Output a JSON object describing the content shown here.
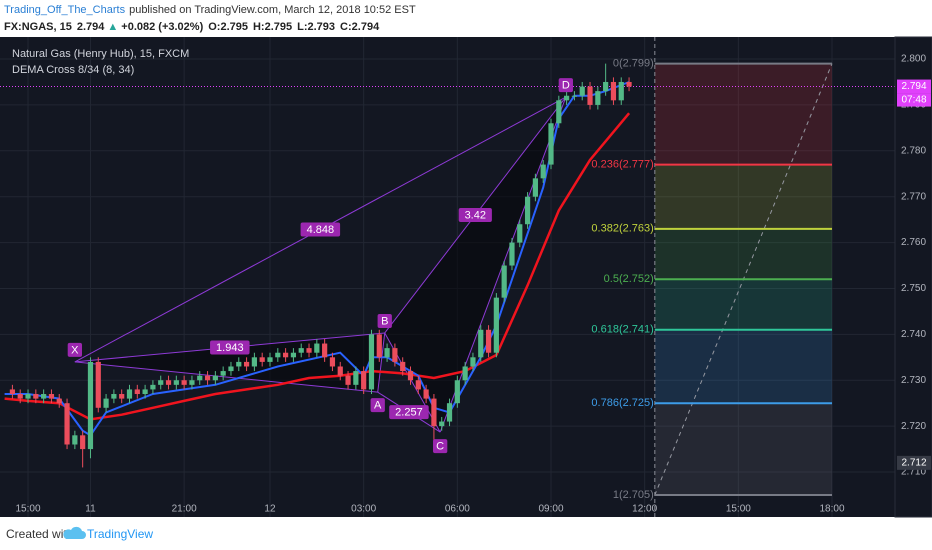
{
  "header": {
    "author": "Trading_Off_The_Charts",
    "published": "published on TradingView.com, March 12, 2018 10:52 EST",
    "symbol": "FX:NGAS, 15",
    "last": 2.794,
    "arrow": "▲",
    "change": "+0.082 (+3.02%)",
    "ohlc": [
      "O:2.795",
      "H:2.795",
      "L:2.793",
      "C:2.794"
    ]
  },
  "footer": {
    "created": "Created with",
    "brand": "TradingView"
  },
  "chart_data": {
    "type": "candlestick",
    "title": "Natural Gas (Henry Hub), 15, FXCM",
    "indicator": "DEMA Cross 8/34 (8, 34)",
    "up_color": "#53b987",
    "down_color": "#eb4d5c",
    "xlim": [
      -3.59,
      111.07
    ],
    "ylim": [
      2.7002,
      2.8048
    ],
    "grid": true,
    "xticks": [
      {
        "value": 0,
        "label": "15:00"
      },
      {
        "value": 8,
        "label": "11"
      },
      {
        "value": 20,
        "label": "21:00"
      },
      {
        "value": 31,
        "label": "12"
      },
      {
        "value": 43,
        "label": "03:00"
      },
      {
        "value": 55,
        "label": "06:00"
      },
      {
        "value": 67,
        "label": "09:00"
      },
      {
        "value": 79,
        "label": "12:00"
      },
      {
        "value": 91,
        "label": "15:00"
      },
      {
        "value": 103,
        "label": "18:00"
      }
    ],
    "yticks": [
      {
        "value": 2.71,
        "label": "2.710"
      },
      {
        "value": 2.72,
        "label": "2.720"
      },
      {
        "value": 2.73,
        "label": "2.730"
      },
      {
        "value": 2.74,
        "label": "2.740"
      },
      {
        "value": 2.75,
        "label": "2.750"
      },
      {
        "value": 2.76,
        "label": "2.760"
      },
      {
        "value": 2.77,
        "label": "2.770"
      },
      {
        "value": 2.78,
        "label": "2.780"
      },
      {
        "value": 2.79,
        "label": "2.790"
      },
      {
        "value": 2.8,
        "label": "2.800"
      }
    ],
    "x": [
      -2,
      -1,
      0,
      1,
      2,
      3,
      4,
      5,
      6,
      7,
      8,
      9,
      10,
      11,
      12,
      13,
      14,
      15,
      16,
      17,
      18,
      19,
      20,
      21,
      22,
      23,
      24,
      25,
      26,
      27,
      28,
      29,
      30,
      31,
      32,
      33,
      34,
      35,
      36,
      37,
      38,
      39,
      40,
      41,
      42,
      43,
      44,
      45,
      46,
      47,
      48,
      49,
      50,
      51,
      52,
      53,
      54,
      55,
      56,
      57,
      58,
      59,
      60,
      61,
      62,
      63,
      64,
      65,
      66,
      67,
      68,
      69,
      70,
      71,
      72,
      73,
      74,
      75,
      76,
      77
    ],
    "open": [
      2.728,
      2.727,
      2.726,
      2.727,
      2.726,
      2.727,
      2.726,
      2.725,
      2.716,
      2.718,
      2.715,
      2.734,
      2.724,
      2.726,
      2.727,
      2.726,
      2.728,
      2.727,
      2.728,
      2.729,
      2.73,
      2.729,
      2.73,
      2.729,
      2.73,
      2.731,
      2.73,
      2.731,
      2.732,
      2.733,
      2.734,
      2.733,
      2.735,
      2.734,
      2.735,
      2.736,
      2.735,
      2.736,
      2.737,
      2.736,
      2.738,
      2.735,
      2.733,
      2.731,
      2.729,
      2.732,
      2.728,
      2.74,
      2.735,
      2.737,
      2.734,
      2.732,
      2.73,
      2.728,
      2.726,
      2.72,
      2.721,
      2.725,
      2.73,
      2.733,
      2.735,
      2.741,
      2.736,
      2.748,
      2.755,
      2.76,
      2.764,
      2.77,
      2.774,
      2.777,
      2.786,
      2.791,
      2.792,
      2.792,
      2.794,
      2.79,
      2.793,
      2.795,
      2.791,
      2.795
    ],
    "high": [
      2.729,
      2.728,
      2.728,
      2.728,
      2.728,
      2.728,
      2.727,
      2.726,
      2.719,
      2.719,
      2.735,
      2.735,
      2.727,
      2.728,
      2.728,
      2.729,
      2.729,
      2.729,
      2.73,
      2.731,
      2.731,
      2.731,
      2.731,
      2.731,
      2.732,
      2.732,
      2.732,
      2.733,
      2.734,
      2.735,
      2.735,
      2.736,
      2.736,
      2.736,
      2.737,
      2.737,
      2.737,
      2.738,
      2.738,
      2.739,
      2.739,
      2.736,
      2.734,
      2.732,
      2.733,
      2.733,
      2.741,
      2.741,
      2.738,
      2.738,
      2.735,
      2.733,
      2.731,
      2.729,
      2.727,
      2.722,
      2.726,
      2.731,
      2.734,
      2.736,
      2.742,
      2.742,
      2.749,
      2.756,
      2.761,
      2.765,
      2.771,
      2.775,
      2.778,
      2.787,
      2.792,
      2.793,
      2.793,
      2.795,
      2.795,
      2.794,
      2.799,
      2.796,
      2.796,
      2.796
    ],
    "low": [
      2.726,
      2.725,
      2.725,
      2.725,
      2.725,
      2.725,
      2.724,
      2.715,
      2.715,
      2.711,
      2.713,
      2.723,
      2.723,
      2.725,
      2.725,
      2.725,
      2.726,
      2.726,
      2.727,
      2.728,
      2.728,
      2.728,
      2.728,
      2.728,
      2.729,
      2.729,
      2.729,
      2.73,
      2.731,
      2.732,
      2.732,
      2.732,
      2.733,
      2.733,
      2.734,
      2.734,
      2.734,
      2.735,
      2.735,
      2.735,
      2.734,
      2.732,
      2.73,
      2.728,
      2.728,
      2.727,
      2.727,
      2.734,
      2.734,
      2.733,
      2.731,
      2.729,
      2.727,
      2.725,
      2.716,
      2.719,
      2.72,
      2.724,
      2.729,
      2.732,
      2.734,
      2.735,
      2.735,
      2.747,
      2.754,
      2.759,
      2.763,
      2.769,
      2.773,
      2.776,
      2.785,
      2.79,
      2.791,
      2.791,
      2.789,
      2.789,
      2.792,
      2.79,
      2.79,
      2.793
    ],
    "close": [
      2.727,
      2.726,
      2.727,
      2.726,
      2.727,
      2.726,
      2.725,
      2.716,
      2.718,
      2.715,
      2.734,
      2.724,
      2.726,
      2.727,
      2.726,
      2.728,
      2.727,
      2.728,
      2.729,
      2.73,
      2.729,
      2.73,
      2.729,
      2.73,
      2.731,
      2.73,
      2.731,
      2.732,
      2.733,
      2.734,
      2.733,
      2.735,
      2.734,
      2.735,
      2.736,
      2.735,
      2.736,
      2.737,
      2.736,
      2.738,
      2.735,
      2.733,
      2.731,
      2.729,
      2.732,
      2.728,
      2.74,
      2.735,
      2.737,
      2.734,
      2.732,
      2.73,
      2.728,
      2.726,
      2.72,
      2.721,
      2.725,
      2.73,
      2.733,
      2.735,
      2.741,
      2.736,
      2.748,
      2.755,
      2.76,
      2.764,
      2.77,
      2.774,
      2.777,
      2.786,
      2.791,
      2.792,
      2.792,
      2.794,
      2.79,
      2.793,
      2.795,
      2.791,
      2.795,
      2.794
    ],
    "lines": [
      {
        "color": "#f0141e",
        "x": [
          -3,
          0,
          4,
          8,
          12,
          16,
          20,
          24,
          28,
          32,
          36,
          40,
          44,
          48,
          52,
          56,
          60,
          64,
          68,
          72,
          77
        ],
        "values": [
          2.726,
          2.7255,
          2.725,
          2.7215,
          2.7225,
          2.724,
          2.7255,
          2.727,
          2.728,
          2.729,
          2.7305,
          2.731,
          2.732,
          2.7315,
          2.7305,
          2.732,
          2.7355,
          2.7507,
          2.767,
          2.778,
          2.7882
        ]
      },
      {
        "color": "#2962ff",
        "x": [
          -3,
          0,
          4,
          7,
          8,
          10,
          16,
          24,
          32,
          40,
          43,
          44,
          46,
          50,
          52,
          54,
          58,
          60,
          62,
          64,
          66,
          68,
          70,
          72,
          74,
          77
        ],
        "values": [
          2.727,
          2.727,
          2.726,
          2.719,
          2.718,
          2.723,
          2.727,
          2.729,
          2.733,
          2.736,
          2.731,
          2.735,
          2.735,
          2.731,
          2.724,
          2.723,
          2.735,
          2.742,
          2.752,
          2.762,
          2.772,
          2.787,
          2.792,
          2.792,
          2.793,
          2.795
        ]
      }
    ],
    "pattern": {
      "color": "#8e3ad6",
      "points": [
        {
          "label": "X",
          "x": 6,
          "y": 2.734
        },
        {
          "label": "A",
          "x": 44.8,
          "y": 2.7274
        },
        {
          "label": "B",
          "x": 45.7,
          "y": 2.7403
        },
        {
          "label": "C",
          "x": 52.8,
          "y": 2.7187
        },
        {
          "label": "D",
          "x": 68.9,
          "y": 2.7917
        }
      ],
      "ratios": [
        4.848,
        1.943,
        2.257,
        3.42
      ]
    },
    "fib": {
      "x": [
        80.3,
        103
      ],
      "levels": [
        {
          "label": "0(2.799)",
          "price": 2.799,
          "color": "#787b86"
        },
        {
          "label": "0.236(2.777)",
          "price": 2.777,
          "color": "#f23645"
        },
        {
          "label": "0.382(2.763)",
          "price": 2.763,
          "color": "#c0d23c"
        },
        {
          "label": "0.5(2.752)",
          "price": 2.752,
          "color": "#4caf50"
        },
        {
          "label": "0.618(2.741)",
          "price": 2.741,
          "color": "#2fc79a"
        },
        {
          "label": "0.786(2.725)",
          "price": 2.725,
          "color": "#3d9ce8"
        },
        {
          "label": "1(2.705)",
          "price": 2.705,
          "color": "#787b86"
        }
      ]
    },
    "last_price": 2.794,
    "countdown": "07:48",
    "cursor_price": 2.712
  }
}
